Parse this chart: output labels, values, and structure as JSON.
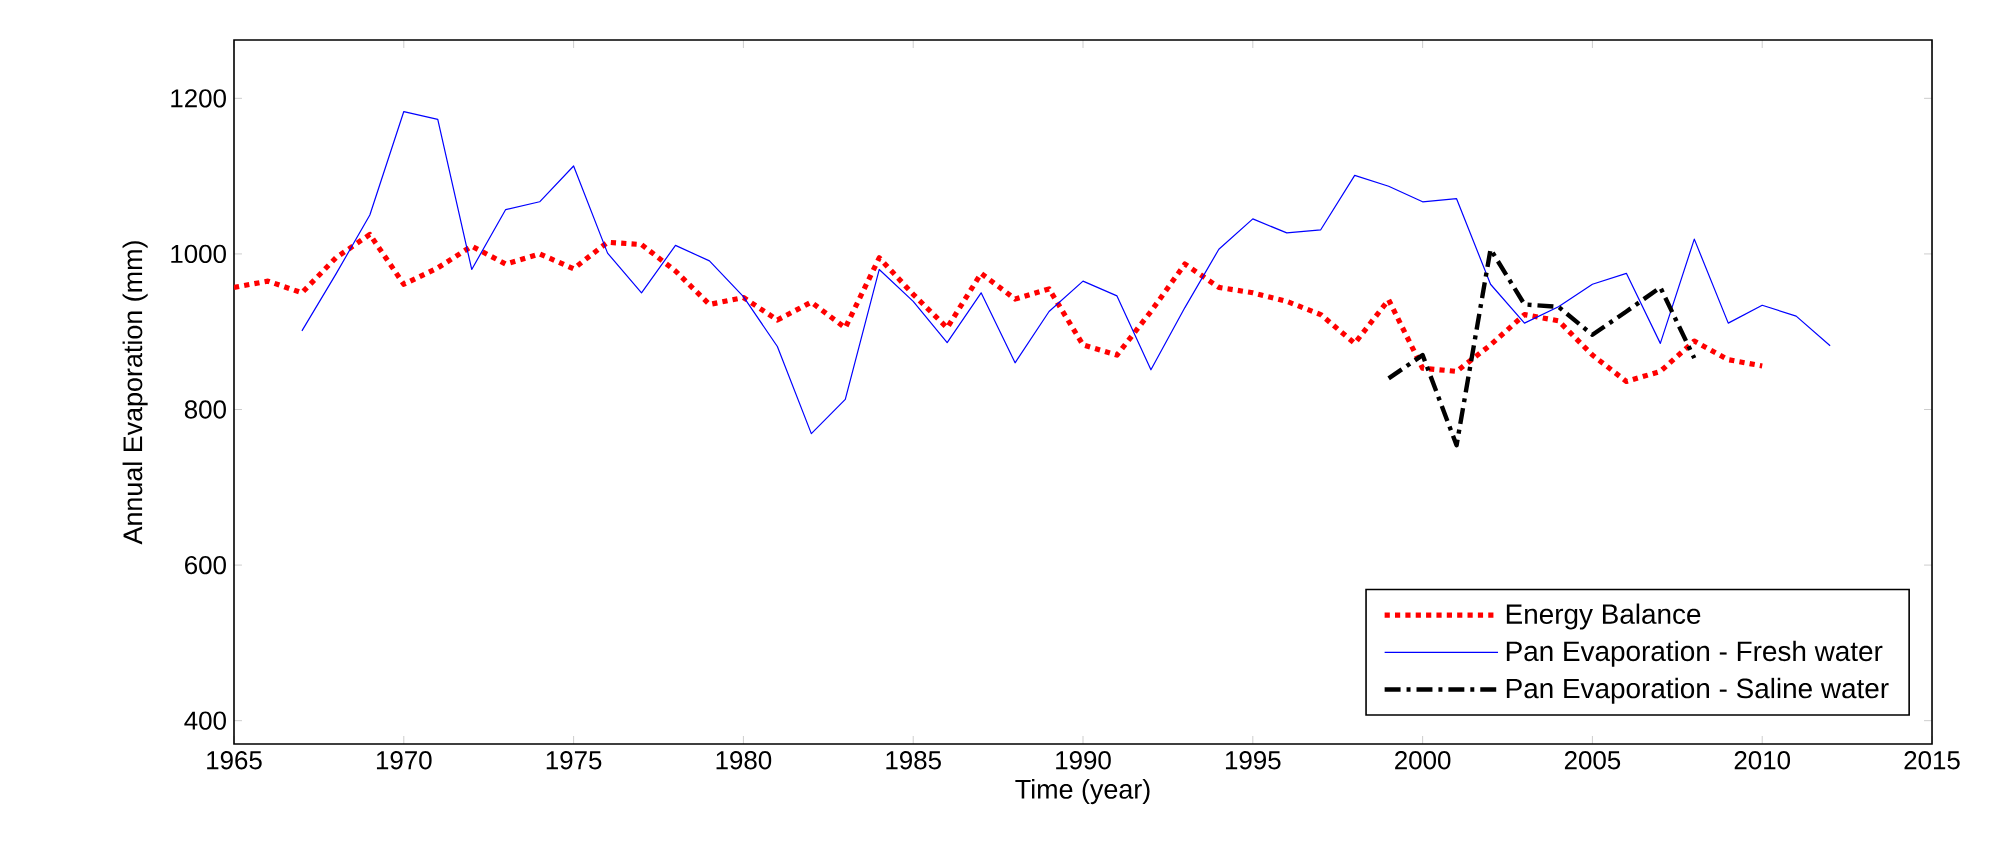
{
  "chart_data": {
    "type": "line",
    "xlabel": "Time (year)",
    "ylabel": "Annual Evaporation (mm)",
    "xlim": [
      1965,
      2015
    ],
    "ylim": [
      370,
      1275
    ],
    "xticks": [
      1965,
      1970,
      1975,
      1980,
      1985,
      1990,
      1995,
      2000,
      2005,
      2010,
      2015
    ],
    "yticks": [
      400,
      600,
      800,
      1000,
      1200
    ],
    "grid": false,
    "legend": "bottom right",
    "series": [
      {
        "name": "Energy Balance",
        "color": "#ff0000",
        "line_style": "dotted",
        "x": [
          1965,
          1966,
          1967,
          1968,
          1969,
          1970,
          1971,
          1972,
          1973,
          1974,
          1975,
          1976,
          1977,
          1978,
          1979,
          1980,
          1981,
          1982,
          1983,
          1984,
          1985,
          1986,
          1987,
          1988,
          1989,
          1990,
          1991,
          1992,
          1993,
          1994,
          1995,
          1996,
          1997,
          1998,
          1999,
          2000,
          2001,
          2002,
          2003,
          2004,
          2005,
          2006,
          2007,
          2008,
          2009,
          2010
        ],
        "values": [
          957,
          965,
          950,
          995,
          1025,
          961,
          982,
          1010,
          987,
          1000,
          981,
          1015,
          1012,
          978,
          935,
          944,
          915,
          938,
          905,
          995,
          948,
          905,
          975,
          942,
          955,
          883,
          870,
          926,
          987,
          957,
          950,
          939,
          922,
          885,
          941,
          853,
          849,
          883,
          922,
          914,
          870,
          836,
          849,
          888,
          864,
          856
        ]
      },
      {
        "name": "Pan Evaporation - Fresh water",
        "color": "#0000ff",
        "line_style": "solid",
        "x": [
          1967,
          1968,
          1969,
          1970,
          1971,
          1972,
          1973,
          1974,
          1975,
          1976,
          1977,
          1978,
          1979,
          1980,
          1981,
          1982,
          1983,
          1984,
          1985,
          1986,
          1987,
          1988,
          1989,
          1990,
          1991,
          1992,
          1993,
          1994,
          1995,
          1996,
          1997,
          1998,
          1999,
          2000,
          2001,
          2002,
          2003,
          2004,
          2005,
          2006,
          2007,
          2008,
          2009,
          2010,
          2011,
          2012
        ],
        "values": [
          901,
          974,
          1050,
          1183,
          1173,
          980,
          1057,
          1067,
          1113,
          1001,
          950,
          1011,
          991,
          945,
          881,
          769,
          813,
          980,
          939,
          886,
          950,
          860,
          926,
          965,
          946,
          851,
          931,
          1006,
          1045,
          1027,
          1031,
          1101,
          1087,
          1067,
          1071,
          961,
          911,
          932,
          961,
          975,
          885,
          1019,
          911,
          934,
          920,
          882
        ]
      },
      {
        "name": "Pan Evaporation - Saline water",
        "color": "#000000",
        "line_style": "dashdot",
        "x": [
          1999,
          2000,
          2001,
          2002,
          2003,
          2004,
          2005,
          2006,
          2007,
          2008
        ],
        "values": [
          840,
          870,
          754,
          1006,
          935,
          932,
          896,
          926,
          957,
          866
        ]
      }
    ]
  }
}
